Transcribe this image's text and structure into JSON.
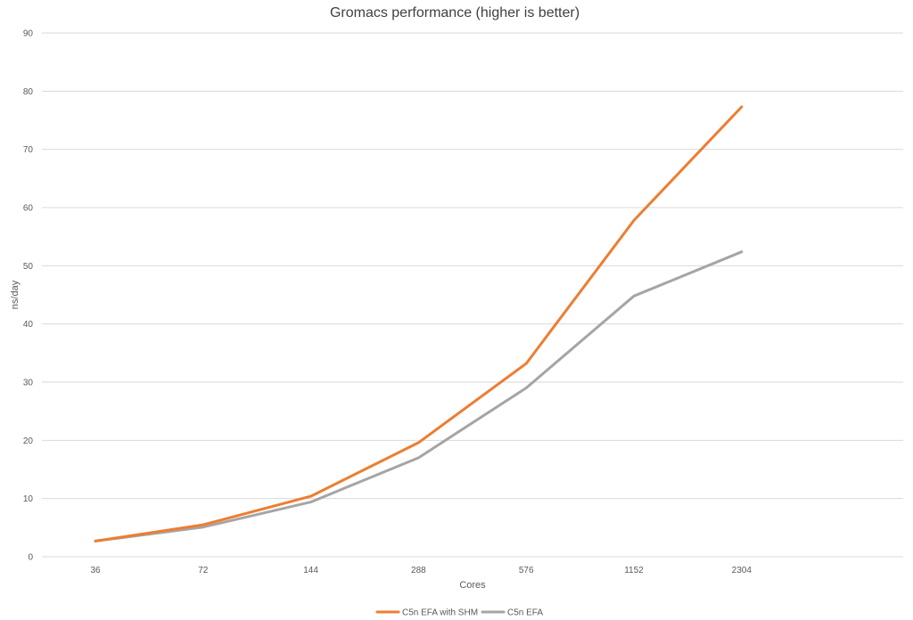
{
  "chart_data": {
    "type": "line",
    "title": "Gromacs performance (higher is better)",
    "xlabel": "Cores",
    "ylabel": "ns/day",
    "categories": [
      "36",
      "72",
      "144",
      "288",
      "576",
      "1152",
      "2304"
    ],
    "ylim": [
      0,
      90
    ],
    "yticks": [
      0,
      10,
      20,
      30,
      40,
      50,
      60,
      70,
      80,
      90
    ],
    "grid": "horizontal",
    "legend_position": "bottom",
    "series": [
      {
        "name": "C5n EFA with SHM",
        "color": "#ED7D31",
        "values": [
          2.7,
          5.5,
          10.4,
          19.6,
          33.2,
          57.8,
          77.3
        ]
      },
      {
        "name": "C5n EFA",
        "color": "#A5A5A5",
        "values": [
          2.7,
          5.1,
          9.4,
          17.0,
          29.0,
          44.8,
          52.4
        ]
      }
    ]
  }
}
